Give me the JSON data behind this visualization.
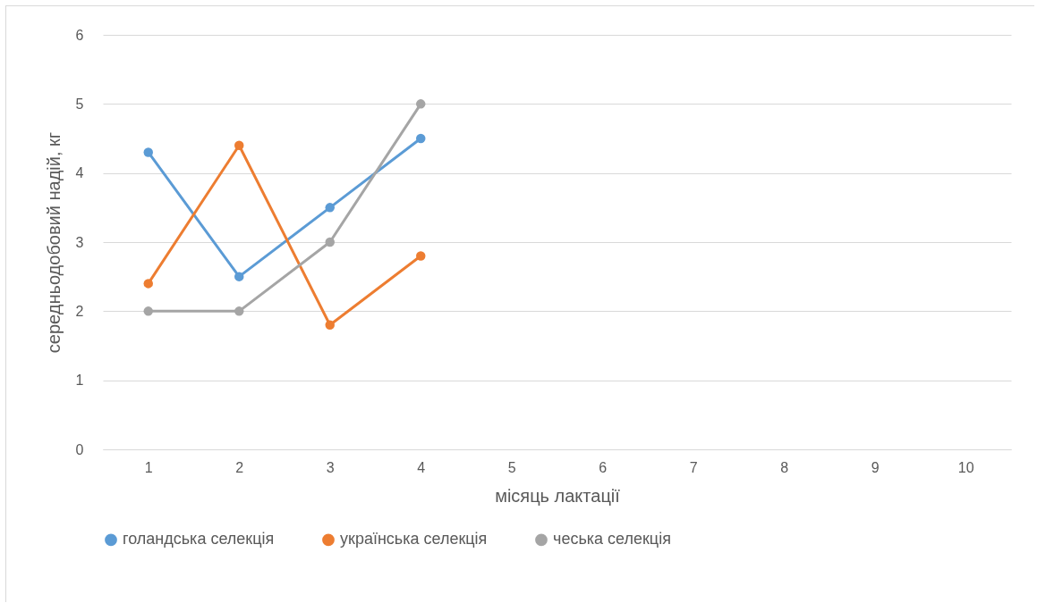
{
  "chart_data": {
    "type": "line",
    "xlabel": "місяць лактації",
    "ylabel": "середньодобовий надій, кг",
    "categories": [
      "1",
      "2",
      "3",
      "4",
      "5",
      "6",
      "7",
      "8",
      "9",
      "10"
    ],
    "series": [
      {
        "name": "голандська селекція",
        "color": "#5b9bd5",
        "values": [
          4.3,
          2.5,
          3.5,
          4.5,
          null,
          null,
          null,
          null,
          null,
          null
        ]
      },
      {
        "name": "українська селекція",
        "color": "#ed7d31",
        "values": [
          2.4,
          4.4,
          1.8,
          2.8,
          null,
          null,
          null,
          null,
          null,
          null
        ]
      },
      {
        "name": "чеська селекція",
        "color": "#a5a5a5",
        "values": [
          2.0,
          2.0,
          3.0,
          5.0,
          null,
          null,
          null,
          null,
          null,
          null
        ]
      }
    ],
    "ylim": [
      0,
      6
    ],
    "yticks": [
      0,
      1,
      2,
      3,
      4,
      5,
      6
    ],
    "grid": "y",
    "legend": "bottom",
    "marker": "circle",
    "line_style": "solid"
  }
}
